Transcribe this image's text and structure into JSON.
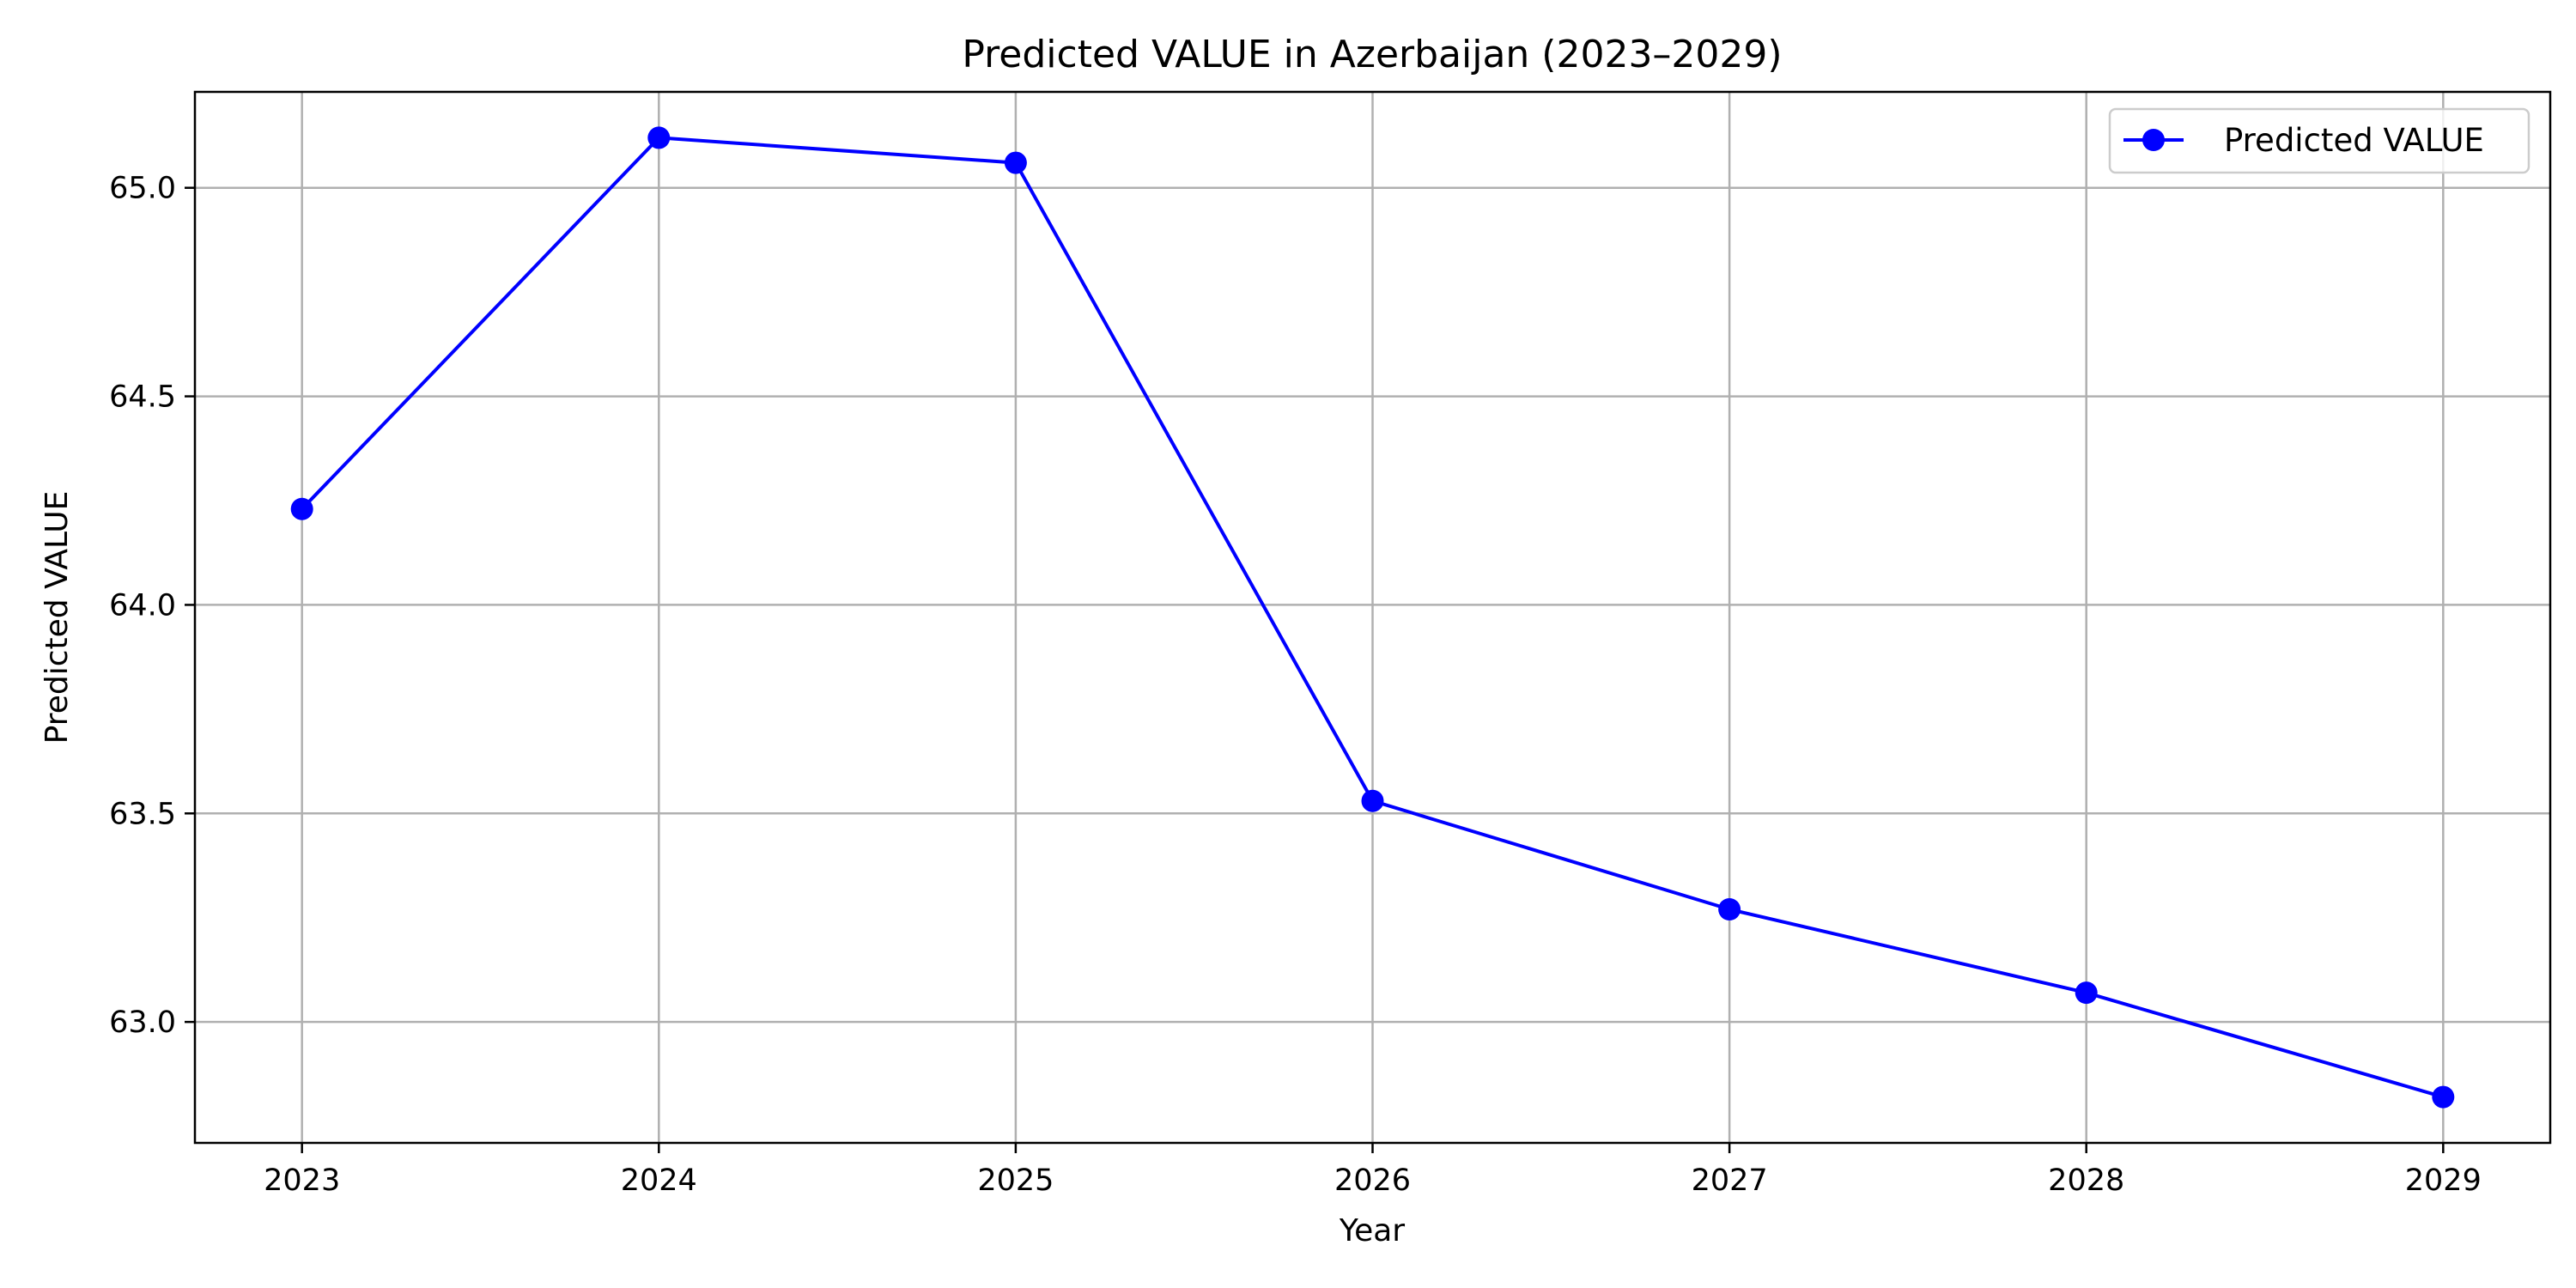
{
  "chart_data": {
    "type": "line",
    "title": "Predicted VALUE in Azerbaijan (2023–2029)",
    "xlabel": "Year",
    "ylabel": "Predicted VALUE",
    "x": [
      2023,
      2024,
      2025,
      2026,
      2027,
      2028,
      2029
    ],
    "series": [
      {
        "name": "Predicted VALUE",
        "color": "#0000ff",
        "marker": "circle",
        "values": [
          64.23,
          65.12,
          65.06,
          63.53,
          63.27,
          63.07,
          62.82
        ]
      }
    ],
    "xlim": [
      2022.7,
      2029.3
    ],
    "ylim": [
      62.71,
      65.23
    ],
    "yticks": [
      63.0,
      63.5,
      64.0,
      64.5,
      65.0
    ],
    "ytick_labels": [
      "63.0",
      "63.5",
      "64.0",
      "64.5",
      "65.0"
    ],
    "xticks": [
      2023,
      2024,
      2025,
      2026,
      2027,
      2028,
      2029
    ],
    "xtick_labels": [
      "2023",
      "2024",
      "2025",
      "2026",
      "2027",
      "2028",
      "2029"
    ],
    "grid": true,
    "legend_position": "top-right"
  }
}
